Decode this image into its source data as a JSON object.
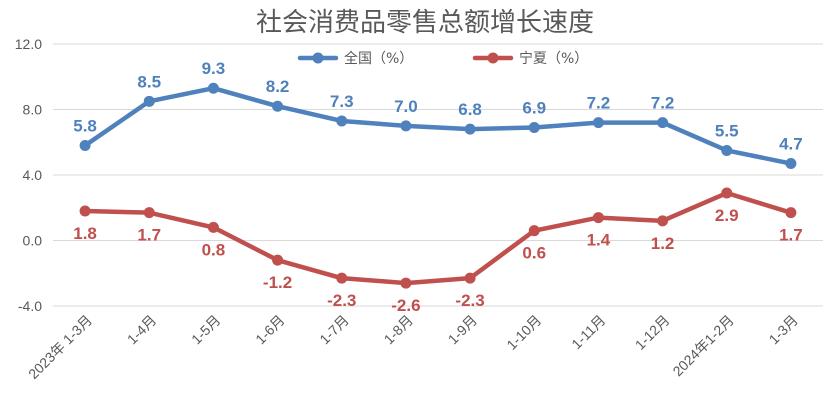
{
  "chart_data": {
    "type": "line",
    "title": "社会消费品零售总额增长速度",
    "categories": [
      "2023年 1-3月",
      "1-4月",
      "1-5月",
      "1-6月",
      "1-7月",
      "1-8月",
      "1-9月",
      "1-10月",
      "1-11月",
      "1-12月",
      "2024年1-2月",
      "1-3月"
    ],
    "y_ticks": [
      "12.0",
      "8.0",
      "4.0",
      "0.0",
      "-4.0"
    ],
    "ylim": [
      -4,
      12
    ],
    "legend_position": "top",
    "grid": "horizontal",
    "series": [
      {
        "name": "全国（%）",
        "color": "#4F81BD",
        "values": [
          5.8,
          8.5,
          9.3,
          8.2,
          7.3,
          7.0,
          6.8,
          6.9,
          7.2,
          7.2,
          5.5,
          4.7
        ],
        "labels": [
          "5.8",
          "8.5",
          "9.3",
          "8.2",
          "7.3",
          "7.0",
          "6.8",
          "6.9",
          "7.2",
          "7.2",
          "5.5",
          "4.7"
        ],
        "label_position": "above"
      },
      {
        "name": "宁夏（%）",
        "color": "#C0504D",
        "values": [
          1.8,
          1.7,
          0.8,
          -1.2,
          -2.3,
          -2.6,
          -2.3,
          0.6,
          1.4,
          1.2,
          2.9,
          1.7
        ],
        "labels": [
          "1.8",
          "1.7",
          "0.8",
          "-1.2",
          "-2.3",
          "-2.6",
          "-2.3",
          "0.6",
          "1.4",
          "1.2",
          "2.9",
          "1.7"
        ],
        "label_position": "below"
      }
    ]
  }
}
